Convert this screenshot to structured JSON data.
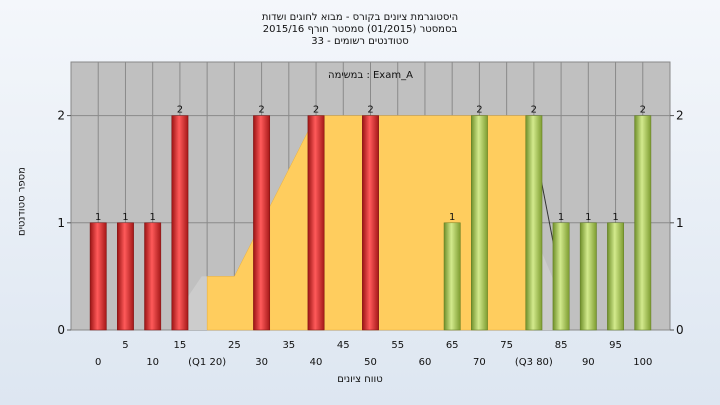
{
  "title": {
    "line1": "היסטוגרמת ציונים בקורס - מבוא לחוגים ושדות",
    "line2": "בסמסטר  (01/2015)  סמסטר חורף 2015/16",
    "line3": "33 - סטודנטים רשומים"
  },
  "chart_data": {
    "type": "bar",
    "ylabel": "מספר סטודנטים",
    "xlabel": "טווח ציונים",
    "annotation": "במשימה : Exam_A",
    "ylim": [
      0,
      2.5
    ],
    "yticks": [
      0,
      1,
      2
    ],
    "grid": true,
    "bars": [
      {
        "x": 0,
        "value": 1,
        "label": "1",
        "color": "red"
      },
      {
        "x": 5,
        "value": 1,
        "label": "1",
        "color": "red"
      },
      {
        "x": 10,
        "value": 1,
        "label": "1",
        "color": "red"
      },
      {
        "x": 15,
        "value": 2,
        "label": "2",
        "color": "red"
      },
      {
        "x": 30,
        "value": 2,
        "label": "2",
        "color": "red"
      },
      {
        "x": 40,
        "value": 2,
        "label": "2",
        "color": "red"
      },
      {
        "x": 50,
        "value": 2,
        "label": "2",
        "color": "red"
      },
      {
        "x": 65,
        "value": 1,
        "label": "1",
        "color": "green"
      },
      {
        "x": 70,
        "value": 2,
        "label": "2",
        "color": "green"
      },
      {
        "x": 80,
        "value": 2,
        "label": "2",
        "color": "green"
      },
      {
        "x": 85,
        "value": 1,
        "label": "1",
        "color": "green"
      },
      {
        "x": 90,
        "value": 1,
        "label": "1",
        "color": "green"
      },
      {
        "x": 95,
        "value": 1,
        "label": "1",
        "color": "green"
      },
      {
        "x": 100,
        "value": 2,
        "label": "2",
        "color": "green"
      }
    ],
    "xticks_top": [
      "5",
      "15",
      "25",
      "35",
      "45",
      "55",
      "65",
      "75",
      "85",
      "95"
    ],
    "xticks_top_values": [
      5,
      15,
      25,
      35,
      45,
      55,
      65,
      75,
      85,
      95
    ],
    "xticks_bottom": [
      "0",
      "10",
      "(Q1 20)",
      "30",
      "40",
      "50",
      "60",
      "70",
      "(Q3 80)",
      "90",
      "100"
    ],
    "xticks_bottom_values": [
      0,
      10,
      20,
      30,
      40,
      50,
      60,
      70,
      80,
      90,
      100
    ],
    "box": {
      "q1": 20,
      "q3": 80,
      "min": 15,
      "max": 85
    },
    "area_shape": [
      [
        15,
        0.2
      ],
      [
        20,
        0.5
      ],
      [
        25,
        0.5
      ],
      [
        40,
        2
      ],
      [
        80,
        2
      ],
      [
        85,
        0.3
      ]
    ],
    "colors": {
      "plot_bg": "#c0c0c0",
      "red": "#dd2a2a",
      "green": "#a7c955",
      "iqr": "#ffcd5e",
      "whisker": "#cccccc"
    }
  }
}
